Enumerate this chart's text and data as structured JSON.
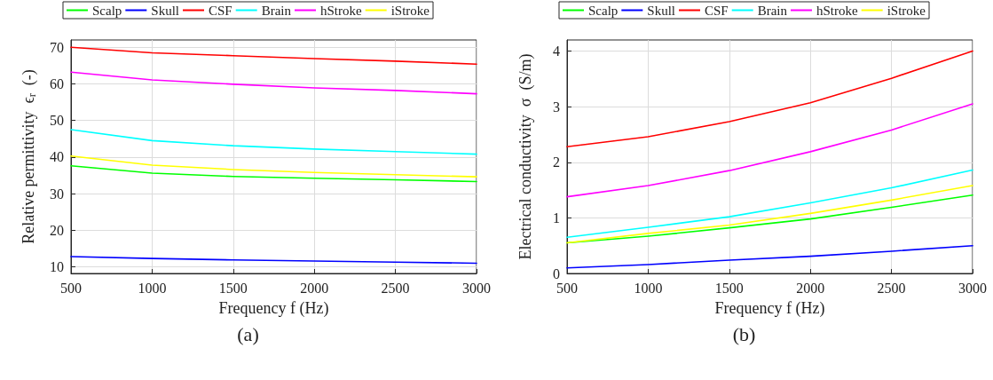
{
  "chart_data": [
    {
      "type": "line",
      "xlabel": "Frequency f (Hz)",
      "ylabel": "Relative permittivity  ϵ$_{r}$  (-)",
      "x": [
        500,
        1000,
        1500,
        2000,
        2500,
        3000
      ],
      "series": [
        {
          "name": "Scalp",
          "color": "#00ff00",
          "values": [
            37.6,
            35.6,
            34.7,
            34.2,
            33.8,
            33.3
          ]
        },
        {
          "name": "Skull",
          "color": "#0000ff",
          "values": [
            12.8,
            12.3,
            11.9,
            11.6,
            11.3,
            11.0
          ]
        },
        {
          "name": "CSF",
          "color": "#ff0000",
          "values": [
            70,
            68.5,
            67.7,
            66.9,
            66.2,
            65.4
          ]
        },
        {
          "name": "Brain",
          "color": "#00ffff",
          "values": [
            47.5,
            44.5,
            43.1,
            42.2,
            41.5,
            40.8
          ]
        },
        {
          "name": "hStroke",
          "color": "#ff00ff",
          "values": [
            63.2,
            61.1,
            59.9,
            58.9,
            58.2,
            57.3
          ]
        },
        {
          "name": "iStroke",
          "color": "#ffff00",
          "values": [
            40.3,
            37.8,
            36.6,
            35.8,
            35.2,
            34.6
          ]
        }
      ],
      "xlim": [
        500,
        3000
      ],
      "xticks": [
        500,
        1000,
        1500,
        2000,
        2500,
        3000
      ],
      "ylim": [
        8.2,
        72
      ],
      "yticks": [
        10,
        20,
        30,
        40,
        50,
        60,
        70
      ],
      "grid": true,
      "legend": "top",
      "marker": "none",
      "line_style": "solid",
      "annotations": [
        "(a)"
      ]
    },
    {
      "type": "line",
      "xlabel": "Frequency f (Hz)",
      "ylabel": "Electrical conductivity  σ  (S/m)",
      "x": [
        500,
        1000,
        1500,
        2000,
        2500,
        3000
      ],
      "series": [
        {
          "name": "Scalp",
          "color": "#00ff00",
          "values": [
            0.55,
            0.67,
            0.82,
            0.98,
            1.19,
            1.41
          ]
        },
        {
          "name": "Skull",
          "color": "#0000ff",
          "values": [
            0.1,
            0.16,
            0.24,
            0.31,
            0.4,
            0.5
          ]
        },
        {
          "name": "CSF",
          "color": "#ff0000",
          "values": [
            2.28,
            2.46,
            2.73,
            3.07,
            3.51,
            4.0
          ]
        },
        {
          "name": "Brain",
          "color": "#00ffff",
          "values": [
            0.65,
            0.83,
            1.02,
            1.27,
            1.54,
            1.86
          ]
        },
        {
          "name": "hStroke",
          "color": "#ff00ff",
          "values": [
            1.38,
            1.58,
            1.85,
            2.19,
            2.58,
            3.05
          ]
        },
        {
          "name": "iStroke",
          "color": "#ffff00",
          "values": [
            0.55,
            0.72,
            0.87,
            1.08,
            1.32,
            1.58
          ]
        }
      ],
      "xlim": [
        500,
        3000
      ],
      "xticks": [
        500,
        1000,
        1500,
        2000,
        2500,
        3000
      ],
      "ylim": [
        0,
        4.2
      ],
      "yticks": [
        0,
        1,
        2,
        3,
        4
      ],
      "grid": true,
      "legend": "top",
      "marker": "none",
      "line_style": "solid",
      "annotations": [
        "(b)"
      ]
    }
  ]
}
